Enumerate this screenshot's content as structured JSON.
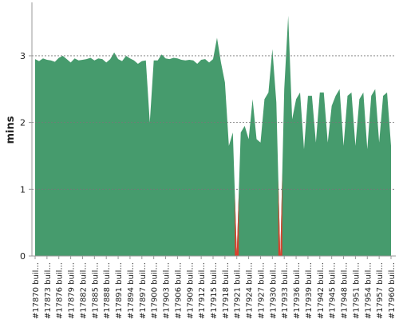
{
  "chart_data": {
    "type": "area",
    "y_label": "mins",
    "categories": [
      "#17870 buil...",
      null,
      null,
      "#17873 buil...",
      null,
      null,
      "#17876 buil...",
      null,
      null,
      "#17879 buil...",
      null,
      null,
      "#17882 buil...",
      null,
      null,
      "#17885 buil...",
      null,
      null,
      "#17888 buil...",
      null,
      null,
      "#17891 buil...",
      null,
      null,
      "#17894 buil...",
      null,
      null,
      "#17897 buil...",
      null,
      null,
      "#17900 buil...",
      null,
      null,
      "#17903 buil...",
      null,
      null,
      "#17906 buil...",
      null,
      null,
      "#17909 buil...",
      null,
      null,
      "#17912 buil...",
      null,
      null,
      "#17915 buil...",
      null,
      null,
      "#17918 buil...",
      null,
      null,
      "#17921 buil...",
      null,
      null,
      "#17924 buil...",
      null,
      null,
      "#17927 buil...",
      null,
      null,
      "#17930 buil...",
      null,
      null,
      "#17933 buil...",
      null,
      null,
      "#17936 buil...",
      null,
      null,
      "#17939 buil...",
      null,
      null,
      "#17942 buil...",
      null,
      null,
      "#17945 buil...",
      null,
      null,
      "#17948 buil...",
      null,
      null,
      "#17951 buil...",
      null,
      null,
      "#17954 buil...",
      null,
      null,
      "#17957 buil...",
      null,
      null,
      "#17960 buil..."
    ],
    "values": [
      2.95,
      2.92,
      2.96,
      2.94,
      2.93,
      2.91,
      2.97,
      3.0,
      2.95,
      2.9,
      2.96,
      2.93,
      2.94,
      2.95,
      2.97,
      2.93,
      2.96,
      2.95,
      2.9,
      2.95,
      3.05,
      2.95,
      2.92,
      3.0,
      2.96,
      2.93,
      2.88,
      2.92,
      2.93,
      2.0,
      2.93,
      2.93,
      3.02,
      2.96,
      2.95,
      2.97,
      2.96,
      2.94,
      2.93,
      2.94,
      2.93,
      2.88,
      2.94,
      2.95,
      2.9,
      2.95,
      3.27,
      2.9,
      2.6,
      1.65,
      1.85,
      0.05,
      1.85,
      1.95,
      1.75,
      2.35,
      1.75,
      1.7,
      2.35,
      2.45,
      3.1,
      2.3,
      0.0,
      2.5,
      3.6,
      2.05,
      2.35,
      2.45,
      1.6,
      2.4,
      2.4,
      1.7,
      2.45,
      2.45,
      1.7,
      2.25,
      2.4,
      2.5,
      1.65,
      2.4,
      2.45,
      1.65,
      2.35,
      2.45,
      1.6,
      2.4,
      2.5,
      1.7,
      2.4,
      2.45,
      1.65
    ],
    "color": "#469b6d",
    "failed_color": "#d9412e",
    "failed": [
      51,
      62
    ],
    "ylim": [
      0,
      3.8
    ],
    "yticks": [
      0,
      1,
      2,
      3
    ],
    "grid": true
  }
}
